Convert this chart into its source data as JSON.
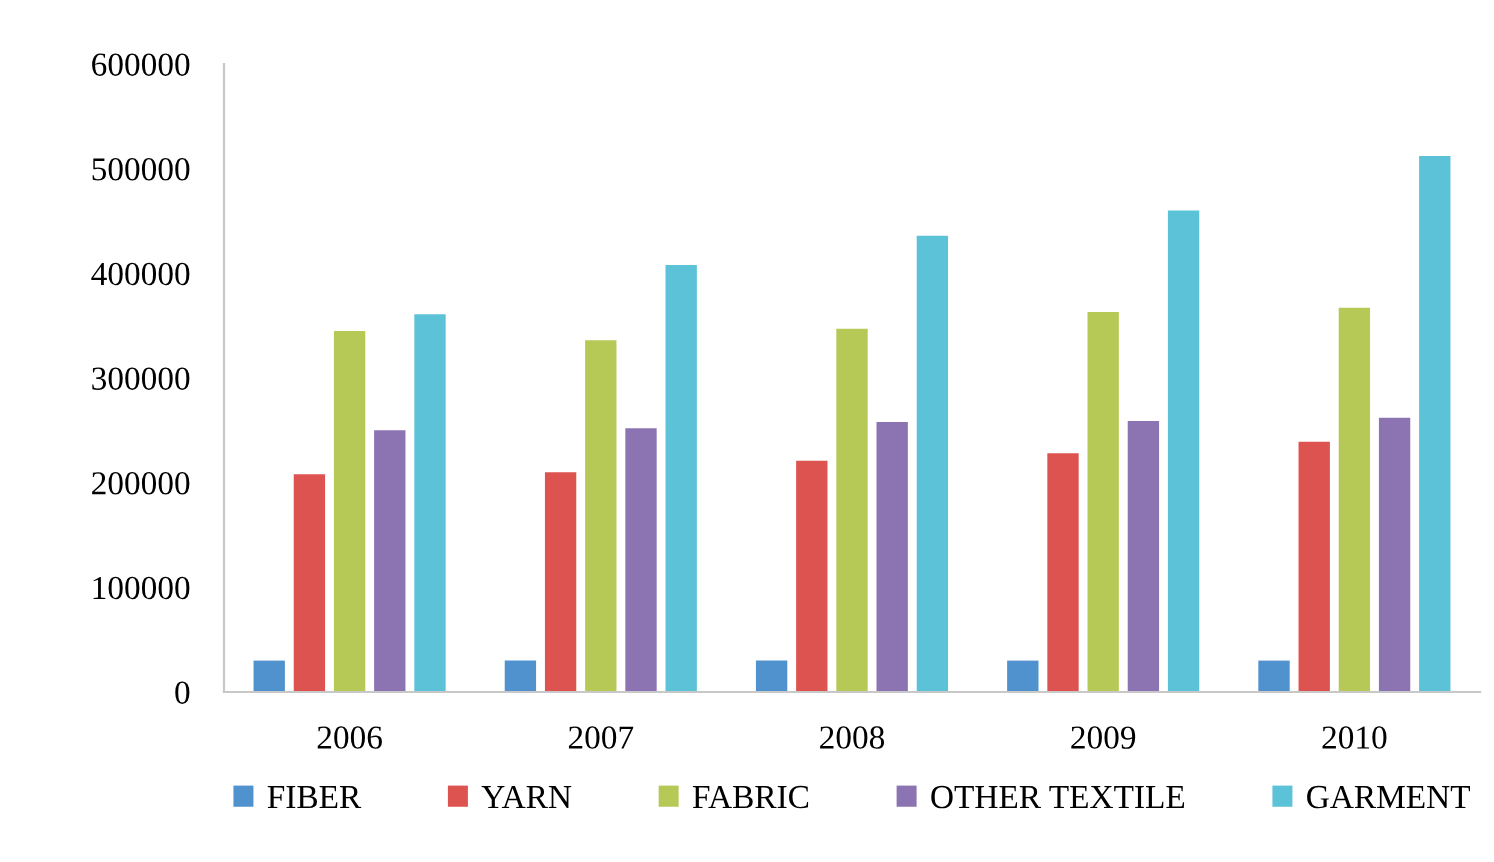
{
  "chart_data": {
    "type": "bar",
    "categories": [
      "2006",
      "2007",
      "2008",
      "2009",
      "2010"
    ],
    "series": [
      {
        "name": "FIBER",
        "color": "#4f92cd",
        "values": [
          30000,
          30000,
          30000,
          30000,
          30000
        ]
      },
      {
        "name": "YARN",
        "color": "#dc5350",
        "values": [
          208000,
          210000,
          221000,
          228000,
          239000
        ]
      },
      {
        "name": "FABRIC",
        "color": "#b6c957",
        "values": [
          345000,
          336000,
          347000,
          363000,
          367000
        ]
      },
      {
        "name": "OTHER TEXTILE",
        "color": "#8c74b2",
        "values": [
          250000,
          252000,
          258000,
          259000,
          262000
        ]
      },
      {
        "name": "GARMENT",
        "color": "#5bc2d8",
        "values": [
          361000,
          408000,
          436000,
          460000,
          512000
        ]
      }
    ],
    "ylim": [
      0,
      600000
    ],
    "yticks": [
      0,
      100000,
      200000,
      300000,
      400000,
      500000,
      600000
    ],
    "grid": false,
    "legend": "bottom"
  }
}
